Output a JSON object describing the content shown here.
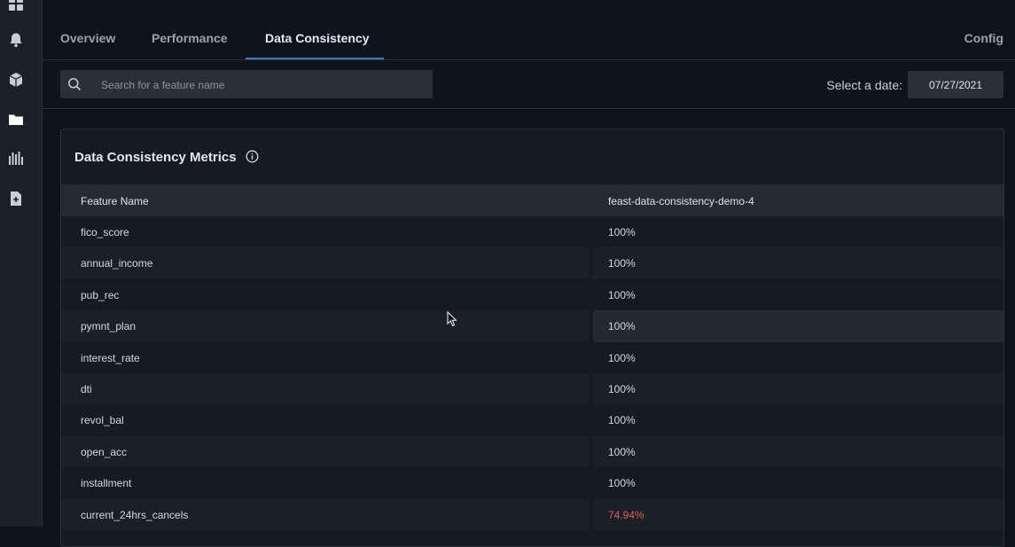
{
  "sidebar": {
    "icons": [
      "dashboard-icon",
      "bell-icon",
      "cube-icon",
      "folder-icon",
      "chart-icon",
      "document-add-icon"
    ]
  },
  "tabs": {
    "overview": "Overview",
    "performance": "Performance",
    "data_consistency": "Data Consistency",
    "active": "Data Consistency",
    "config": "Config"
  },
  "search": {
    "placeholder": "Search for a feature name",
    "value": ""
  },
  "date": {
    "label": "Select a date:",
    "value": "07/27/2021"
  },
  "panel": {
    "title": "Data Consistency Metrics"
  },
  "table": {
    "headers": [
      "Feature Name",
      "feast-data-consistency-demo-4"
    ],
    "rows": [
      {
        "name": "fico_score",
        "value": "100%"
      },
      {
        "name": "annual_income",
        "value": "100%"
      },
      {
        "name": "pub_rec",
        "value": "100%"
      },
      {
        "name": "pymnt_plan",
        "value": "100%"
      },
      {
        "name": "interest_rate",
        "value": "100%"
      },
      {
        "name": "dti",
        "value": "100%"
      },
      {
        "name": "revol_bal",
        "value": "100%"
      },
      {
        "name": "open_acc",
        "value": "100%"
      },
      {
        "name": "installment",
        "value": "100%"
      },
      {
        "name": "current_24hrs_cancels",
        "value": "74.94%"
      }
    ]
  },
  "colors": {
    "accent": "#3f7fb0",
    "warning": "#e05a50"
  }
}
